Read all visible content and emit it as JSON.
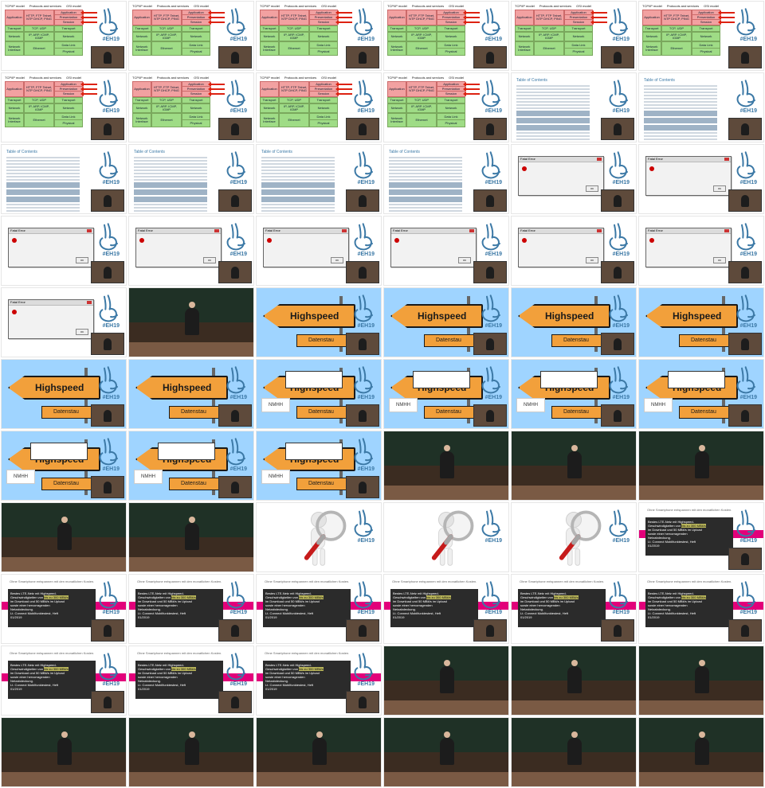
{
  "tiles": [
    {
      "type": "osi",
      "labels": {
        "h1": "TCP/IP model",
        "h2": "Protocols and services",
        "h3": "OSI model",
        "app": "Application",
        "svc": "HTTP, FTP\nTelnet, NTP\nDHCP, PING",
        "osi_app": "Application",
        "osi_pres": "Presentation",
        "osi_sess": "Session",
        "transport": "Transport",
        "tcp": "TCP, UDP",
        "network": "Network",
        "ip": "IP, ARP, ICMP, IGMP",
        "datalink": "Data Link",
        "ethernet": "Ethernet",
        "physical": "Physical",
        "interface": "Network Interface"
      }
    },
    {
      "type": "osi"
    },
    {
      "type": "osi"
    },
    {
      "type": "osi"
    },
    {
      "type": "osi"
    },
    {
      "type": "osi"
    },
    {
      "type": "osi"
    },
    {
      "type": "osi"
    },
    {
      "type": "osi"
    },
    {
      "type": "osi"
    },
    {
      "type": "toc",
      "labels": {
        "title": "Table of Contents"
      }
    },
    {
      "type": "toc"
    },
    {
      "type": "toc"
    },
    {
      "type": "toc"
    },
    {
      "type": "toc"
    },
    {
      "type": "toc"
    },
    {
      "type": "dialog",
      "labels": {
        "title": "Fatal Error",
        "ok": "OK"
      }
    },
    {
      "type": "dialog"
    },
    {
      "type": "dialog"
    },
    {
      "type": "dialog"
    },
    {
      "type": "dialog"
    },
    {
      "type": "dialog"
    },
    {
      "type": "dialog"
    },
    {
      "type": "dialog"
    },
    {
      "type": "dialog"
    },
    {
      "type": "lecture"
    },
    {
      "type": "street",
      "labels": {
        "big": "Highspeed",
        "small": "Datenstau"
      }
    },
    {
      "type": "street"
    },
    {
      "type": "street"
    },
    {
      "type": "street"
    },
    {
      "type": "street"
    },
    {
      "type": "street"
    },
    {
      "type": "street_board",
      "labels": {
        "org": "NMHH"
      }
    },
    {
      "type": "street_board"
    },
    {
      "type": "street_board"
    },
    {
      "type": "street_board"
    },
    {
      "type": "street_board"
    },
    {
      "type": "street_board"
    },
    {
      "type": "street_board"
    },
    {
      "type": "lecture"
    },
    {
      "type": "lecture"
    },
    {
      "type": "lecture"
    },
    {
      "type": "lecture"
    },
    {
      "type": "lecture"
    },
    {
      "type": "magnifier"
    },
    {
      "type": "magnifier"
    },
    {
      "type": "magnifier"
    },
    {
      "type": "tmobile",
      "labels": {
        "top": "Ohne Smartphone entspannen mit den monatlichen Kosten.",
        "line1": "Bestes LTE-Netz mit Highspeed-",
        "line2": "Geschwindigkeiten von",
        "hl": "bis zu 300 MBit/s",
        "line3": "im Download und 50 MBit/s im Upload",
        "line4": "sowie einer hervorragenden",
        "line5": "Netzabdeckung.",
        "line6": "Lt. Connect Mobilfunktestest, Heft",
        "line7": "01/2019"
      }
    },
    {
      "type": "tmobile"
    },
    {
      "type": "tmobile"
    },
    {
      "type": "tmobile"
    },
    {
      "type": "tmobile"
    },
    {
      "type": "tmobile"
    },
    {
      "type": "tmobile"
    },
    {
      "type": "tmobile"
    },
    {
      "type": "tmobile"
    },
    {
      "type": "tmobile"
    },
    {
      "type": "lecture"
    },
    {
      "type": "lecture"
    },
    {
      "type": "lecture"
    },
    {
      "type": "lecture"
    },
    {
      "type": "lecture"
    },
    {
      "type": "lecture"
    },
    {
      "type": "lecture"
    },
    {
      "type": "lecture"
    },
    {
      "type": "lecture"
    }
  ]
}
